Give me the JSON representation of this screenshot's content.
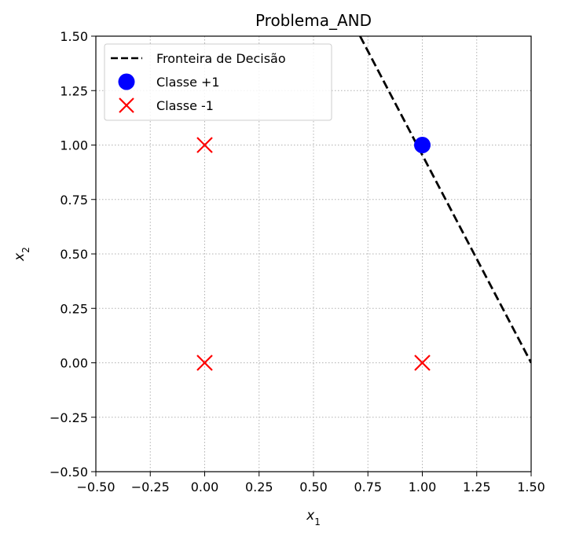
{
  "chart_data": {
    "type": "scatter",
    "title": "Problema_AND",
    "xlabel": "x",
    "xlabel_sub": "1",
    "ylabel": "x",
    "ylabel_sub": "2",
    "xlim": [
      -0.5,
      1.5
    ],
    "ylim": [
      -0.5,
      1.5
    ],
    "xticks": [
      -0.5,
      -0.25,
      0.0,
      0.25,
      0.5,
      0.75,
      1.0,
      1.25,
      1.5
    ],
    "yticks": [
      -0.5,
      -0.25,
      0.0,
      0.25,
      0.5,
      0.75,
      1.0,
      1.25,
      1.5
    ],
    "xtick_labels": [
      "−0.50",
      "−0.25",
      "0.00",
      "0.25",
      "0.50",
      "0.75",
      "1.00",
      "1.25",
      "1.50"
    ],
    "ytick_labels": [
      "−0.50",
      "−0.25",
      "0.00",
      "0.25",
      "0.50",
      "0.75",
      "1.00",
      "1.25",
      "1.50"
    ],
    "grid": true,
    "legend_position": "top-left",
    "series": [
      {
        "name": "Fronteira de Decisão",
        "kind": "line",
        "style": "dashed",
        "color": "#000000",
        "points": [
          [
            0.714,
            1.5
          ],
          [
            1.5,
            0.0
          ]
        ]
      },
      {
        "name": "Classe +1",
        "kind": "scatter",
        "marker": "circle",
        "color": "#0000ff",
        "points": [
          [
            1,
            1
          ]
        ]
      },
      {
        "name": "Classe -1",
        "kind": "scatter",
        "marker": "x",
        "color": "#ff0000",
        "points": [
          [
            0,
            0
          ],
          [
            0,
            1
          ],
          [
            1,
            0
          ]
        ]
      }
    ]
  }
}
